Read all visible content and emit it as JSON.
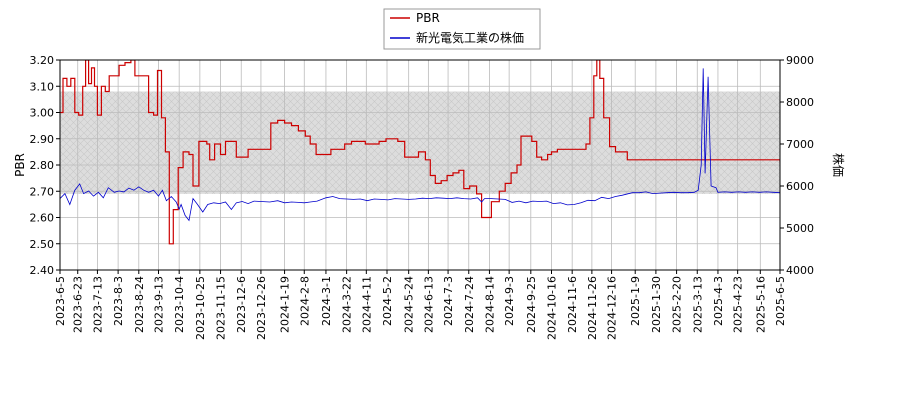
{
  "chart_data": {
    "type": "line",
    "legend": {
      "placement": "top-center",
      "items": [
        "PBR",
        "新光電気工業の株価"
      ]
    },
    "colors": {
      "pbr": "#cc0000",
      "price": "#0000cc",
      "band": "#dddddd",
      "grid": "#bbbbbb"
    },
    "grid": true,
    "left_axis": {
      "label": "PBR",
      "ylim": [
        2.4,
        3.2
      ],
      "ticks": [
        "2.40",
        "2.50",
        "2.60",
        "2.70",
        "2.80",
        "2.90",
        "3.00",
        "3.10",
        "3.20"
      ],
      "band": [
        2.69,
        3.08
      ]
    },
    "right_axis": {
      "label": "株価",
      "ylim": [
        4000,
        9000
      ],
      "ticks": [
        "4000",
        "5000",
        "6000",
        "7000",
        "8000",
        "9000"
      ]
    },
    "x_axis": {
      "range": [
        "2023-06-05",
        "2025-06-05"
      ],
      "ticks": [
        "2023-6-5",
        "2023-6-23",
        "2023-7-13",
        "2023-8-3",
        "2023-8-24",
        "2023-9-13",
        "2023-10-4",
        "2023-10-25",
        "2023-11-15",
        "2023-12-6",
        "2023-12-26",
        "2024-1-19",
        "2024-2-8",
        "2024-3-1",
        "2024-3-22",
        "2024-4-11",
        "2024-5-2",
        "2024-5-24",
        "2024-6-13",
        "2024-7-3",
        "2024-7-24",
        "2024-8-14",
        "2024-9-3",
        "2024-9-25",
        "2024-10-16",
        "2024-11-6",
        "2024-11-26",
        "2024-12-16",
        "2025-1-9",
        "2025-1-30",
        "2025-2-20",
        "2025-3-13",
        "2025-4-3",
        "2025-4-23",
        "2025-5-16",
        "2025-6-5"
      ]
    },
    "series": [
      {
        "name": "PBR",
        "axis": "left",
        "points": [
          [
            "2023-06-05",
            3.0
          ],
          [
            "2023-06-08",
            3.13
          ],
          [
            "2023-06-12",
            3.1
          ],
          [
            "2023-06-16",
            3.13
          ],
          [
            "2023-06-20",
            3.0
          ],
          [
            "2023-06-24",
            2.99
          ],
          [
            "2023-06-28",
            3.1
          ],
          [
            "2023-07-01",
            3.2
          ],
          [
            "2023-07-04",
            3.11
          ],
          [
            "2023-07-07",
            3.17
          ],
          [
            "2023-07-10",
            3.1
          ],
          [
            "2023-07-13",
            2.99
          ],
          [
            "2023-07-17",
            3.1
          ],
          [
            "2023-07-21",
            3.08
          ],
          [
            "2023-07-25",
            3.14
          ],
          [
            "2023-07-31",
            3.14
          ],
          [
            "2023-08-04",
            3.18
          ],
          [
            "2023-08-10",
            3.19
          ],
          [
            "2023-08-16",
            3.2
          ],
          [
            "2023-08-20",
            3.14
          ],
          [
            "2023-08-30",
            3.14
          ],
          [
            "2023-09-03",
            3.0
          ],
          [
            "2023-09-08",
            2.99
          ],
          [
            "2023-09-12",
            3.16
          ],
          [
            "2023-09-16",
            2.98
          ],
          [
            "2023-09-20",
            2.85
          ],
          [
            "2023-09-24",
            2.5
          ],
          [
            "2023-09-28",
            2.63
          ],
          [
            "2023-10-03",
            2.79
          ],
          [
            "2023-10-08",
            2.85
          ],
          [
            "2023-10-14",
            2.84
          ],
          [
            "2023-10-18",
            2.72
          ],
          [
            "2023-10-24",
            2.89
          ],
          [
            "2023-11-01",
            2.88
          ],
          [
            "2023-11-04",
            2.82
          ],
          [
            "2023-11-09",
            2.88
          ],
          [
            "2023-11-15",
            2.84
          ],
          [
            "2023-11-20",
            2.89
          ],
          [
            "2023-11-27",
            2.89
          ],
          [
            "2023-12-01",
            2.83
          ],
          [
            "2023-12-08",
            2.83
          ],
          [
            "2023-12-13",
            2.86
          ],
          [
            "2023-12-20",
            2.86
          ],
          [
            "2024-01-05",
            2.96
          ],
          [
            "2024-01-12",
            2.97
          ],
          [
            "2024-01-19",
            2.96
          ],
          [
            "2024-01-26",
            2.95
          ],
          [
            "2024-02-02",
            2.93
          ],
          [
            "2024-02-09",
            2.91
          ],
          [
            "2024-02-14",
            2.88
          ],
          [
            "2024-02-20",
            2.84
          ],
          [
            "2024-02-28",
            2.84
          ],
          [
            "2024-03-06",
            2.86
          ],
          [
            "2024-03-14",
            2.86
          ],
          [
            "2024-03-20",
            2.88
          ],
          [
            "2024-03-27",
            2.89
          ],
          [
            "2024-04-03",
            2.89
          ],
          [
            "2024-04-10",
            2.88
          ],
          [
            "2024-04-17",
            2.88
          ],
          [
            "2024-04-24",
            2.89
          ],
          [
            "2024-05-01",
            2.9
          ],
          [
            "2024-05-08",
            2.9
          ],
          [
            "2024-05-13",
            2.89
          ],
          [
            "2024-05-20",
            2.83
          ],
          [
            "2024-05-28",
            2.83
          ],
          [
            "2024-06-03",
            2.85
          ],
          [
            "2024-06-10",
            2.82
          ],
          [
            "2024-06-15",
            2.76
          ],
          [
            "2024-06-20",
            2.73
          ],
          [
            "2024-06-26",
            2.74
          ],
          [
            "2024-07-02",
            2.76
          ],
          [
            "2024-07-08",
            2.77
          ],
          [
            "2024-07-14",
            2.78
          ],
          [
            "2024-07-19",
            2.71
          ],
          [
            "2024-07-25",
            2.72
          ],
          [
            "2024-08-01",
            2.69
          ],
          [
            "2024-08-06",
            2.6
          ],
          [
            "2024-08-12",
            2.6
          ],
          [
            "2024-08-16",
            2.66
          ],
          [
            "2024-08-24",
            2.7
          ],
          [
            "2024-08-30",
            2.73
          ],
          [
            "2024-09-05",
            2.77
          ],
          [
            "2024-09-11",
            2.8
          ],
          [
            "2024-09-15",
            2.91
          ],
          [
            "2024-09-20",
            2.91
          ],
          [
            "2024-09-26",
            2.89
          ],
          [
            "2024-10-01",
            2.83
          ],
          [
            "2024-10-06",
            2.82
          ],
          [
            "2024-10-12",
            2.84
          ],
          [
            "2024-10-16",
            2.85
          ],
          [
            "2024-10-22",
            2.86
          ],
          [
            "2024-11-01",
            2.86
          ],
          [
            "2024-11-10",
            2.86
          ],
          [
            "2024-11-16",
            2.86
          ],
          [
            "2024-11-20",
            2.88
          ],
          [
            "2024-11-24",
            2.98
          ],
          [
            "2024-11-28",
            3.14
          ],
          [
            "2024-12-01",
            3.2
          ],
          [
            "2024-12-04",
            3.13
          ],
          [
            "2024-12-08",
            2.98
          ],
          [
            "2024-12-14",
            2.87
          ],
          [
            "2024-12-20",
            2.85
          ],
          [
            "2025-01-01",
            2.82
          ],
          [
            "2025-02-01",
            2.82
          ],
          [
            "2025-06-05",
            2.81
          ]
        ]
      },
      {
        "name": "新光電気工業の株価",
        "axis": "right",
        "points": [
          [
            "2023-06-05",
            5700
          ],
          [
            "2023-06-10",
            5820
          ],
          [
            "2023-06-15",
            5560
          ],
          [
            "2023-06-20",
            5900
          ],
          [
            "2023-06-25",
            6050
          ],
          [
            "2023-06-29",
            5820
          ],
          [
            "2023-07-04",
            5880
          ],
          [
            "2023-07-09",
            5760
          ],
          [
            "2023-07-14",
            5850
          ],
          [
            "2023-07-19",
            5720
          ],
          [
            "2023-07-24",
            5960
          ],
          [
            "2023-07-30",
            5850
          ],
          [
            "2023-08-04",
            5880
          ],
          [
            "2023-08-09",
            5860
          ],
          [
            "2023-08-14",
            5950
          ],
          [
            "2023-08-19",
            5900
          ],
          [
            "2023-08-24",
            5980
          ],
          [
            "2023-08-29",
            5900
          ],
          [
            "2023-09-03",
            5850
          ],
          [
            "2023-09-08",
            5900
          ],
          [
            "2023-09-13",
            5760
          ],
          [
            "2023-09-17",
            5900
          ],
          [
            "2023-09-21",
            5650
          ],
          [
            "2023-09-26",
            5750
          ],
          [
            "2023-10-01",
            5620
          ],
          [
            "2023-10-04",
            5450
          ],
          [
            "2023-10-06",
            5560
          ],
          [
            "2023-10-10",
            5300
          ],
          [
            "2023-10-14",
            5180
          ],
          [
            "2023-10-18",
            5700
          ],
          [
            "2023-10-22",
            5580
          ],
          [
            "2023-10-28",
            5380
          ],
          [
            "2023-11-02",
            5560
          ],
          [
            "2023-11-08",
            5600
          ],
          [
            "2023-11-14",
            5580
          ],
          [
            "2023-11-20",
            5620
          ],
          [
            "2023-11-26",
            5440
          ],
          [
            "2023-12-01",
            5600
          ],
          [
            "2023-12-07",
            5630
          ],
          [
            "2023-12-13",
            5580
          ],
          [
            "2023-12-19",
            5640
          ],
          [
            "2023-12-26",
            5630
          ],
          [
            "2024-01-04",
            5620
          ],
          [
            "2024-01-12",
            5650
          ],
          [
            "2024-01-19",
            5600
          ],
          [
            "2024-01-26",
            5620
          ],
          [
            "2024-02-02",
            5610
          ],
          [
            "2024-02-08",
            5600
          ],
          [
            "2024-02-14",
            5620
          ],
          [
            "2024-02-21",
            5640
          ],
          [
            "2024-03-01",
            5720
          ],
          [
            "2024-03-08",
            5750
          ],
          [
            "2024-03-15",
            5700
          ],
          [
            "2024-03-22",
            5690
          ],
          [
            "2024-03-29",
            5680
          ],
          [
            "2024-04-05",
            5690
          ],
          [
            "2024-04-12",
            5650
          ],
          [
            "2024-04-19",
            5690
          ],
          [
            "2024-04-26",
            5680
          ],
          [
            "2024-05-03",
            5670
          ],
          [
            "2024-05-10",
            5700
          ],
          [
            "2024-05-17",
            5690
          ],
          [
            "2024-05-24",
            5680
          ],
          [
            "2024-05-31",
            5690
          ],
          [
            "2024-06-07",
            5710
          ],
          [
            "2024-06-14",
            5700
          ],
          [
            "2024-06-21",
            5720
          ],
          [
            "2024-06-28",
            5710
          ],
          [
            "2024-07-05",
            5700
          ],
          [
            "2024-07-12",
            5720
          ],
          [
            "2024-07-19",
            5700
          ],
          [
            "2024-07-26",
            5690
          ],
          [
            "2024-08-02",
            5720
          ],
          [
            "2024-08-06",
            5620
          ],
          [
            "2024-08-09",
            5700
          ],
          [
            "2024-08-16",
            5700
          ],
          [
            "2024-08-23",
            5690
          ],
          [
            "2024-08-30",
            5680
          ],
          [
            "2024-09-06",
            5610
          ],
          [
            "2024-09-13",
            5640
          ],
          [
            "2024-09-20",
            5600
          ],
          [
            "2024-09-27",
            5640
          ],
          [
            "2024-10-04",
            5630
          ],
          [
            "2024-10-11",
            5640
          ],
          [
            "2024-10-18",
            5580
          ],
          [
            "2024-10-25",
            5600
          ],
          [
            "2024-11-01",
            5550
          ],
          [
            "2024-11-08",
            5560
          ],
          [
            "2024-11-15",
            5600
          ],
          [
            "2024-11-22",
            5660
          ],
          [
            "2024-11-29",
            5650
          ],
          [
            "2024-12-06",
            5730
          ],
          [
            "2024-12-13",
            5700
          ],
          [
            "2024-12-20",
            5750
          ],
          [
            "2024-12-27",
            5780
          ],
          [
            "2025-01-06",
            5840
          ],
          [
            "2025-01-13",
            5840
          ],
          [
            "2025-01-20",
            5860
          ],
          [
            "2025-01-27",
            5820
          ],
          [
            "2025-02-03",
            5830
          ],
          [
            "2025-02-10",
            5840
          ],
          [
            "2025-02-17",
            5850
          ],
          [
            "2025-02-24",
            5840
          ],
          [
            "2025-03-03",
            5840
          ],
          [
            "2025-03-10",
            5850
          ],
          [
            "2025-03-14",
            5900
          ],
          [
            "2025-03-17",
            6500
          ],
          [
            "2025-03-19",
            8800
          ],
          [
            "2025-03-21",
            6300
          ],
          [
            "2025-03-24",
            8600
          ],
          [
            "2025-03-27",
            6000
          ],
          [
            "2025-04-01",
            5960
          ],
          [
            "2025-04-03",
            5850
          ],
          [
            "2025-04-10",
            5860
          ],
          [
            "2025-04-17",
            5850
          ],
          [
            "2025-04-24",
            5860
          ],
          [
            "2025-05-01",
            5850
          ],
          [
            "2025-05-08",
            5860
          ],
          [
            "2025-05-15",
            5850
          ],
          [
            "2025-05-22",
            5860
          ],
          [
            "2025-05-29",
            5850
          ],
          [
            "2025-06-05",
            5840
          ]
        ]
      }
    ]
  }
}
